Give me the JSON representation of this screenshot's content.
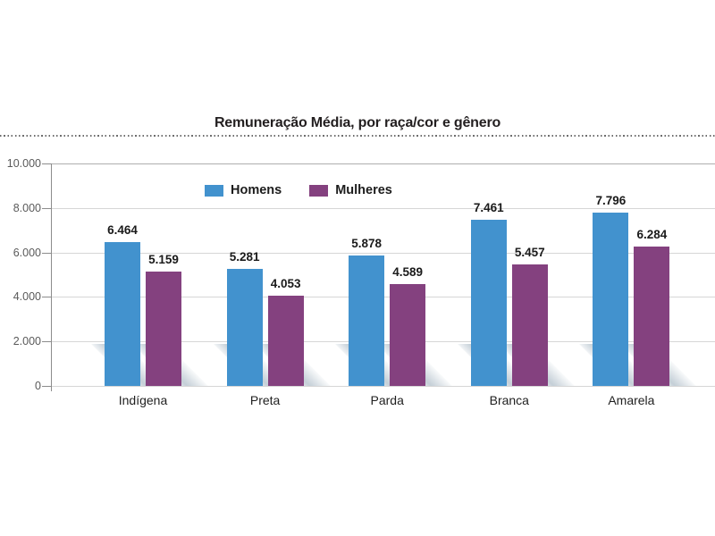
{
  "title": "Remuneração Média, por raça/cor e gênero",
  "colors": {
    "homens": "#4292CE",
    "mulheres": "#84417F",
    "grid": "#D6D6D6",
    "grid_top": "#AEAEAE",
    "axis": "#8C8C8C",
    "tick_text": "#5A5A5A",
    "value_text": "#1A1A1A",
    "shadow": "rgba(148,167,182,0.55)"
  },
  "chart_data": {
    "type": "bar",
    "title": "Remuneração Média, por raça/cor e gênero",
    "categories": [
      "Indígena",
      "Preta",
      "Parda",
      "Branca",
      "Amarela"
    ],
    "series": [
      {
        "name": "Homens",
        "color": "#4292CE",
        "values": [
          6464,
          5281,
          5878,
          7461,
          7796
        ],
        "labels": [
          "6.464",
          "5.281",
          "5.878",
          "7.461",
          "7.796"
        ]
      },
      {
        "name": "Mulheres",
        "color": "#84417F",
        "values": [
          5159,
          4053,
          4589,
          5457,
          6284
        ],
        "labels": [
          "5.159",
          "4.053",
          "4.589",
          "5.457",
          "6.284"
        ]
      }
    ],
    "xlabel": "",
    "ylabel": "",
    "y_axis": {
      "min": 0,
      "max": 10000,
      "step": 2000,
      "tick_labels": [
        "0",
        "2.000",
        "4.000",
        "6.000",
        "8.000",
        "10.000"
      ]
    },
    "grid": true,
    "legend_position": "top-center",
    "bar_effects": "diagonal floor shadow behind each bar"
  }
}
